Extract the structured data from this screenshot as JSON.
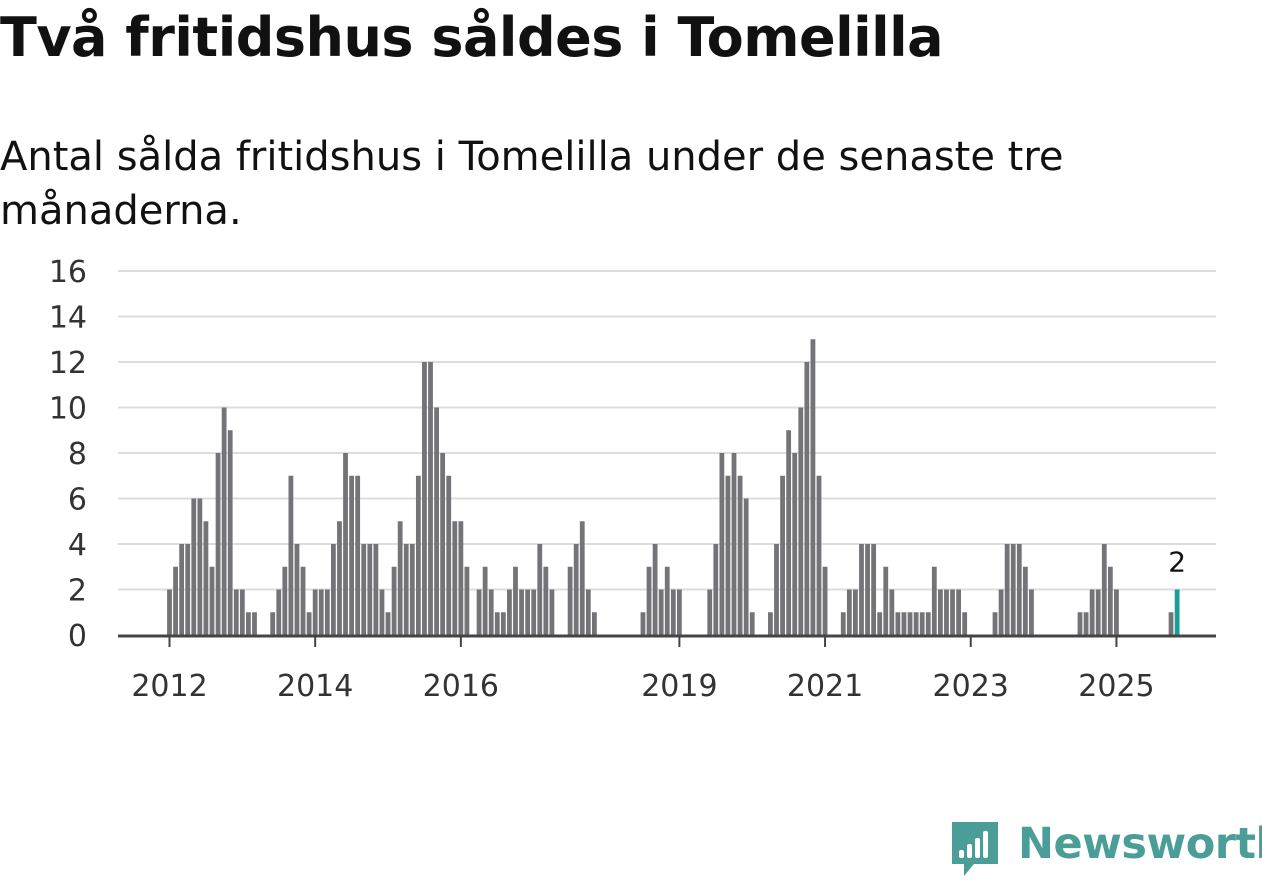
{
  "title": "Två fritidshus såldes i Tomelilla",
  "subtitle": "Antal sålda fritidshus i Tomelilla under de senaste tre månaderna.",
  "brand": {
    "name": "Newsworthy",
    "icon": "newsworthy-logo-icon"
  },
  "colors": {
    "bar": "#747378",
    "highlight": "#1a9e9a",
    "grid": "#dddddd",
    "axis": "#444444",
    "brand": "#4a9e97"
  },
  "chart_data": {
    "type": "bar",
    "title": "Två fritidshus såldes i Tomelilla",
    "xlabel": "",
    "ylabel": "",
    "ylim": [
      0,
      16
    ],
    "yticks": [
      "0",
      "2",
      "4",
      "6",
      "8",
      "10",
      "12",
      "14",
      "16"
    ],
    "xticks": [
      {
        "label": "2012",
        "month_index": 0
      },
      {
        "label": "2014",
        "month_index": 24
      },
      {
        "label": "2016",
        "month_index": 48
      },
      {
        "label": "2019",
        "month_index": 84
      },
      {
        "label": "2021",
        "month_index": 108
      },
      {
        "label": "2023",
        "month_index": 132
      },
      {
        "label": "2025",
        "month_index": 156
      }
    ],
    "first_month": "2012-01",
    "values": [
      2,
      3,
      4,
      4,
      6,
      6,
      5,
      3,
      8,
      10,
      9,
      2,
      2,
      1,
      1,
      0,
      0,
      1,
      2,
      3,
      7,
      4,
      3,
      1,
      2,
      2,
      2,
      4,
      5,
      8,
      7,
      7,
      4,
      4,
      4,
      2,
      1,
      3,
      5,
      4,
      4,
      7,
      12,
      12,
      10,
      8,
      7,
      5,
      5,
      3,
      0,
      2,
      3,
      2,
      1,
      1,
      2,
      3,
      2,
      2,
      2,
      4,
      3,
      2,
      0,
      0,
      3,
      4,
      5,
      2,
      1,
      0,
      0,
      0,
      0,
      0,
      0,
      0,
      1,
      3,
      4,
      2,
      3,
      2,
      2,
      0,
      0,
      0,
      0,
      2,
      4,
      8,
      7,
      8,
      7,
      6,
      1,
      0,
      0,
      1,
      4,
      7,
      9,
      8,
      10,
      12,
      13,
      7,
      3,
      0,
      0,
      1,
      2,
      2,
      4,
      4,
      4,
      1,
      3,
      2,
      1,
      1,
      1,
      1,
      1,
      1,
      3,
      2,
      2,
      2,
      2,
      1,
      0,
      0,
      0,
      0,
      1,
      2,
      4,
      4,
      4,
      3,
      2,
      0,
      0,
      0,
      0,
      0,
      0,
      0,
      1,
      1,
      2,
      2,
      4,
      3,
      2,
      0,
      0,
      0,
      0,
      0,
      0,
      0,
      0,
      1,
      2
    ],
    "highlight_index": 166,
    "highlight_label": "2"
  }
}
